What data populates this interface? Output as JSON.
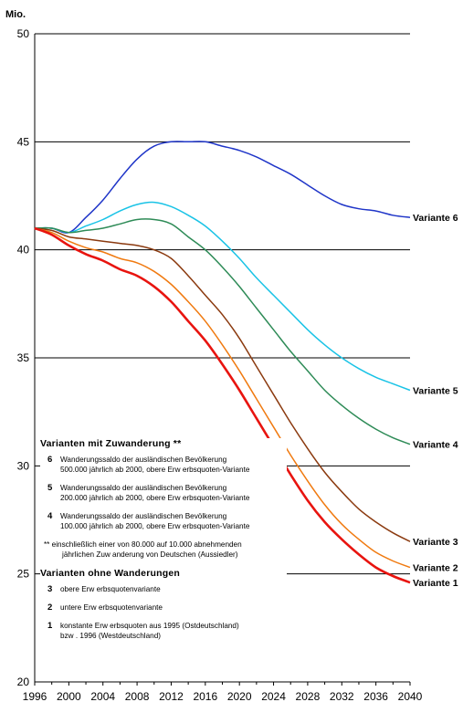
{
  "chart_data": {
    "type": "line",
    "ylabel": "Mio.",
    "ylim": [
      20,
      50
    ],
    "xlim": [
      1996,
      2040
    ],
    "yticks": [
      20,
      25,
      30,
      35,
      40,
      45,
      50
    ],
    "xticks": [
      1996,
      2000,
      2004,
      2008,
      2012,
      2016,
      2020,
      2024,
      2028,
      2032,
      2036,
      2040
    ],
    "grid": "horizontal",
    "x": [
      1996,
      1998,
      2000,
      2002,
      2004,
      2006,
      2008,
      2010,
      2012,
      2014,
      2016,
      2018,
      2020,
      2022,
      2024,
      2026,
      2028,
      2030,
      2032,
      2034,
      2036,
      2038,
      2040
    ],
    "series": [
      {
        "name": "Variante 6",
        "color": "#1f35c8",
        "values": [
          41.0,
          41.0,
          40.8,
          41.5,
          42.3,
          43.3,
          44.2,
          44.8,
          45.0,
          45.0,
          45.0,
          44.8,
          44.6,
          44.3,
          43.9,
          43.5,
          43.0,
          42.5,
          42.1,
          41.9,
          41.8,
          41.6,
          41.5
        ]
      },
      {
        "name": "Variante 5",
        "color": "#19c3e6",
        "values": [
          41.0,
          41.0,
          40.8,
          41.1,
          41.4,
          41.8,
          42.1,
          42.2,
          42.0,
          41.6,
          41.1,
          40.4,
          39.6,
          38.7,
          37.9,
          37.1,
          36.3,
          35.6,
          35.0,
          34.5,
          34.1,
          33.8,
          33.5
        ]
      },
      {
        "name": "Variante 4",
        "color": "#2e8b57",
        "values": [
          41.0,
          41.0,
          40.8,
          40.9,
          41.0,
          41.2,
          41.4,
          41.4,
          41.2,
          40.6,
          40.0,
          39.2,
          38.3,
          37.3,
          36.3,
          35.3,
          34.4,
          33.5,
          32.8,
          32.2,
          31.7,
          31.3,
          31.0
        ]
      },
      {
        "name": "Variante 3",
        "color": "#8b3a0f",
        "values": [
          41.0,
          40.9,
          40.6,
          40.5,
          40.4,
          40.3,
          40.2,
          40.0,
          39.6,
          38.8,
          37.9,
          37.0,
          35.9,
          34.6,
          33.3,
          32.0,
          30.8,
          29.7,
          28.8,
          28.0,
          27.4,
          26.9,
          26.5
        ]
      },
      {
        "name": "Variante 2",
        "color": "#f07a10",
        "values": [
          41.0,
          40.8,
          40.4,
          40.1,
          39.9,
          39.6,
          39.4,
          39.0,
          38.4,
          37.6,
          36.7,
          35.6,
          34.4,
          33.1,
          31.8,
          30.5,
          29.3,
          28.2,
          27.3,
          26.6,
          26.0,
          25.6,
          25.3
        ]
      },
      {
        "name": "Variante 1",
        "color": "#e8140f",
        "values": [
          41.0,
          40.7,
          40.2,
          39.8,
          39.5,
          39.1,
          38.8,
          38.3,
          37.6,
          36.7,
          35.8,
          34.7,
          33.5,
          32.2,
          30.9,
          29.6,
          28.4,
          27.4,
          26.6,
          25.9,
          25.3,
          24.9,
          24.6
        ]
      }
    ]
  },
  "legend": {
    "heading_with": "Varianten mit Zuwanderung **",
    "heading_without": "Varianten ohne Wanderungen",
    "with_entries": [
      {
        "num": "6",
        "line1": "Wanderungssaldo der ausländischen Bevölkerung",
        "line2": "500.000 jährlich ab 2000, obere Erw erbsquoten-Variante"
      },
      {
        "num": "5",
        "line1": "Wanderungssaldo der ausländischen Bevölkerung",
        "line2": "200.000 jährlich ab 2000, obere Erw erbsquoten-Variante"
      },
      {
        "num": "4",
        "line1": "Wanderungssaldo der ausländischen Bevölkerung",
        "line2": "100.000 jährlich ab 2000, obere Erw erbsquoten-Variante"
      }
    ],
    "note_line1": "** einschließlich einer von 80.000 auf 10.000 abnehmenden",
    "note_line2": "jährlichen Zuw anderung von Deutschen (Aussiedler)",
    "without_entries": [
      {
        "num": "3",
        "line1": "obere Erw erbsquotenvariante",
        "line2": ""
      },
      {
        "num": "2",
        "line1": "untere Erw erbsquotenvariante",
        "line2": ""
      },
      {
        "num": "1",
        "line1": "konstante Erw erbsquoten aus 1995 (Ostdeutschland)",
        "line2": "bzw . 1996 (Westdeutschland)"
      }
    ]
  }
}
